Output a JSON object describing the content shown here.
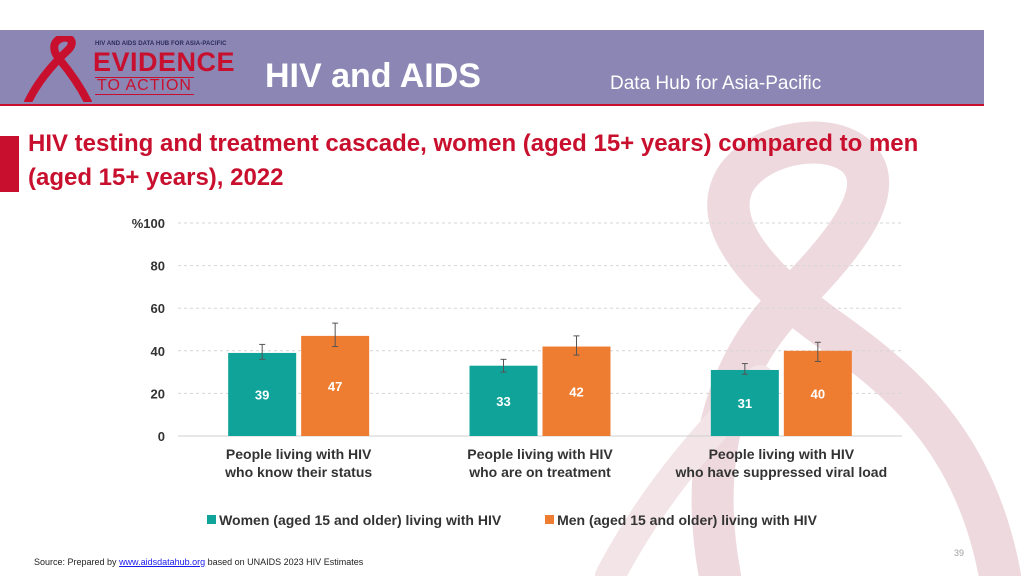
{
  "header": {
    "logo": {
      "top_text": "HIV AND AIDS DATA HUB FOR ASIA-PACIFIC",
      "main_text": "EVIDENCE",
      "sub_text": "TO ACTION",
      "icon": "red-ribbon-icon"
    },
    "title": "HIV and AIDS",
    "subtitle": "Data Hub for Asia-Pacific"
  },
  "slide_title": "HIV testing and treatment cascade, women (aged 15+ years) compared to men (aged 15+ years), 2022",
  "chart_data": {
    "type": "bar",
    "ylabel": "%",
    "ylim": [
      0,
      100
    ],
    "yticks": [
      0,
      20,
      40,
      60,
      80,
      100
    ],
    "grid": true,
    "legend_position": "bottom",
    "categories": [
      [
        "People living with HIV",
        "who know their status"
      ],
      [
        "People living with HIV",
        "who are on treatment"
      ],
      [
        "People living with HIV",
        "who have suppressed viral load"
      ]
    ],
    "series": [
      {
        "name": "Women (aged 15 and older) living with HIV",
        "color": "#0fa39a",
        "values": [
          39,
          33,
          31
        ],
        "error_low": [
          36,
          30,
          29
        ],
        "error_high": [
          43,
          36,
          34
        ]
      },
      {
        "name": "Men (aged 15 and older) living with HIV",
        "color": "#ee7d31",
        "values": [
          47,
          42,
          40
        ],
        "error_low": [
          42,
          38,
          35
        ],
        "error_high": [
          53,
          47,
          44
        ]
      }
    ]
  },
  "footer": {
    "page_number": "39",
    "source_prefix": "Source: Prepared by ",
    "source_link": "www.aidsdatahub.org",
    "source_suffix": " based on UNAIDS 2023 HIV Estimates"
  },
  "colors": {
    "header_band": "#8b86b3",
    "title_red": "#c8102e",
    "ribbon_watermark": "#eed9df"
  }
}
